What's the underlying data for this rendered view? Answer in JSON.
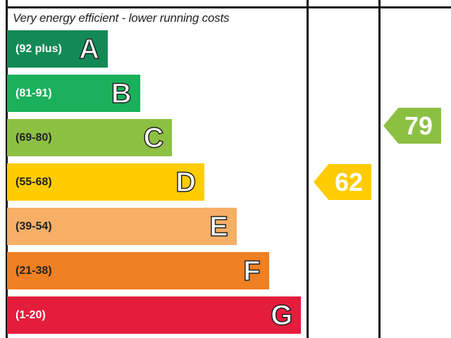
{
  "chart_data": {
    "type": "bar",
    "title": "Very energy efficient - lower running costs",
    "bands": [
      {
        "letter": "A",
        "range": "(92 plus)",
        "color": "#138a55"
      },
      {
        "letter": "B",
        "range": "(81-91)",
        "color": "#1bb05b"
      },
      {
        "letter": "C",
        "range": "(69-80)",
        "color": "#8cc043"
      },
      {
        "letter": "D",
        "range": "(55-68)",
        "color": "#ffcc00"
      },
      {
        "letter": "E",
        "range": "(39-54)",
        "color": "#f7ae67"
      },
      {
        "letter": "F",
        "range": "(21-38)",
        "color": "#ef8023"
      },
      {
        "letter": "G",
        "range": "(1-20)",
        "color": "#e41d3c"
      }
    ],
    "current": {
      "value": "62",
      "band": "D",
      "color": "#ffcc00"
    },
    "potential": {
      "value": "79",
      "band": "C",
      "color": "#8cc043"
    }
  }
}
